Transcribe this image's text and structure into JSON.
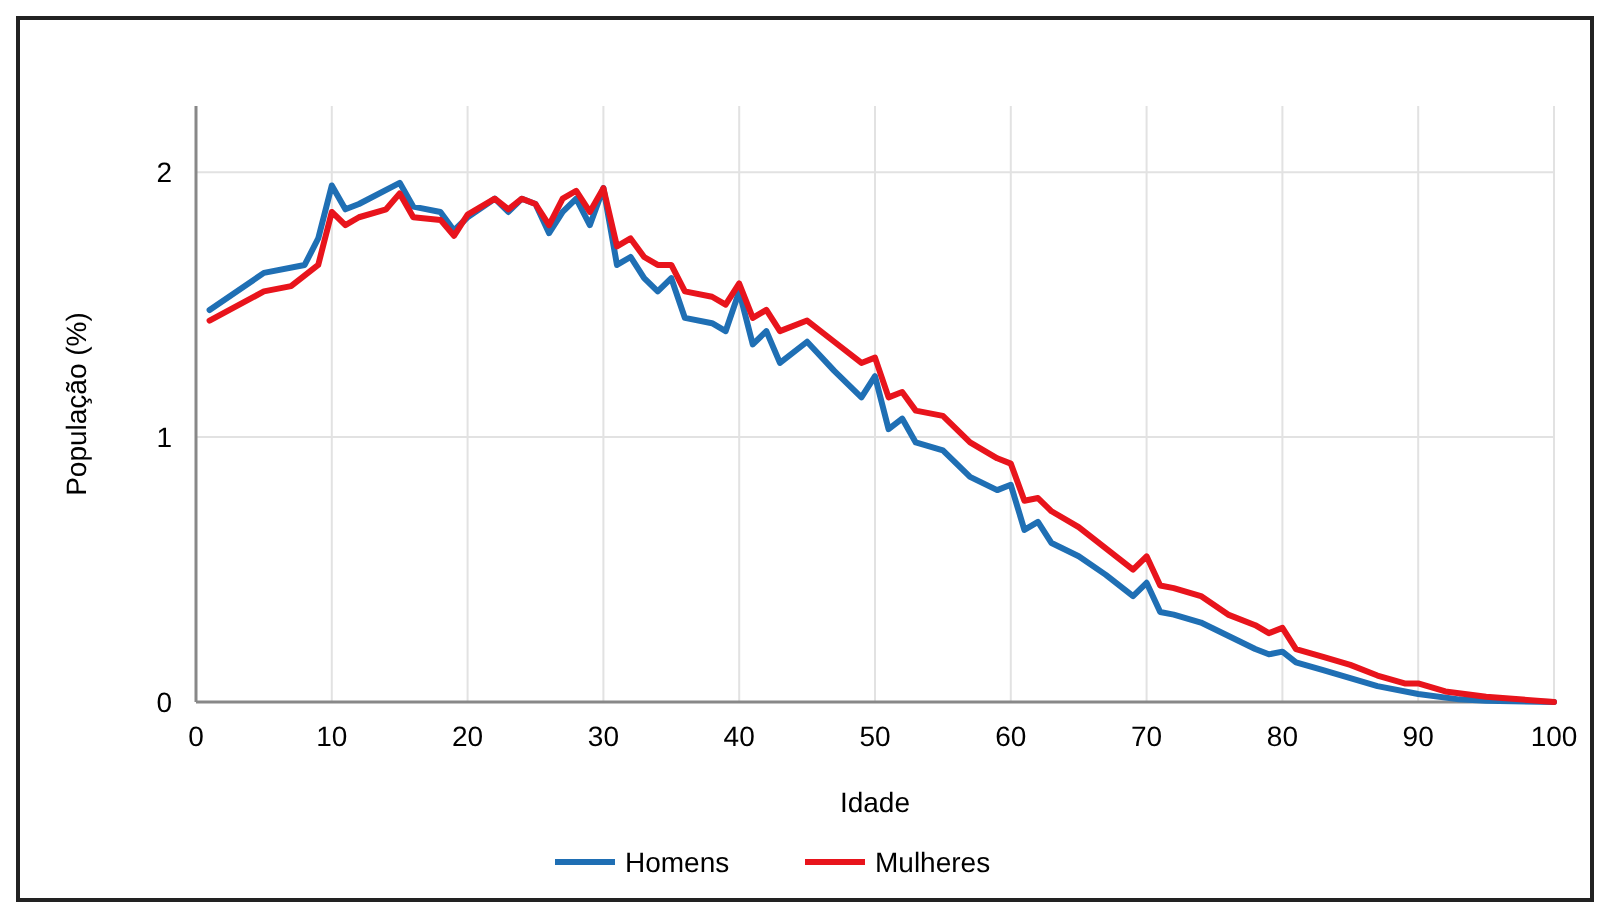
{
  "chart_data": {
    "type": "line",
    "xlabel": "Idade",
    "ylabel": "População (%)",
    "xlim": [
      0,
      100
    ],
    "ylim": [
      0,
      2.25
    ],
    "xticks": [
      0,
      10,
      20,
      30,
      40,
      50,
      60,
      70,
      80,
      90,
      100
    ],
    "yticks": [
      0,
      1,
      2
    ],
    "grid": true,
    "legend": "bottom",
    "line_style": "solid",
    "marker": "none",
    "series": [
      {
        "name": "Homens",
        "color": "#1f6fb4",
        "x": [
          1,
          5,
          8,
          9,
          10,
          11,
          12,
          15,
          16,
          18,
          19,
          20,
          22,
          23,
          24,
          25,
          26,
          27,
          28,
          29,
          30,
          31,
          32,
          33,
          34,
          35,
          36,
          38,
          39,
          40,
          41,
          42,
          43,
          45,
          47,
          49,
          50,
          51,
          52,
          53,
          55,
          57,
          59,
          60,
          61,
          62,
          63,
          65,
          67,
          69,
          70,
          71,
          72,
          74,
          76,
          78,
          79,
          80,
          81,
          83,
          85,
          87,
          90,
          93,
          95,
          100
        ],
        "values": [
          1.48,
          1.62,
          1.65,
          1.75,
          1.95,
          1.86,
          1.88,
          1.96,
          1.87,
          1.85,
          1.78,
          1.83,
          1.9,
          1.85,
          1.9,
          1.88,
          1.77,
          1.85,
          1.9,
          1.8,
          1.94,
          1.65,
          1.68,
          1.6,
          1.55,
          1.6,
          1.45,
          1.43,
          1.4,
          1.55,
          1.35,
          1.4,
          1.28,
          1.36,
          1.25,
          1.15,
          1.23,
          1.03,
          1.07,
          0.98,
          0.95,
          0.85,
          0.8,
          0.82,
          0.65,
          0.68,
          0.6,
          0.55,
          0.48,
          0.4,
          0.45,
          0.34,
          0.33,
          0.3,
          0.25,
          0.2,
          0.18,
          0.19,
          0.15,
          0.12,
          0.09,
          0.06,
          0.03,
          0.01,
          0.005,
          0
        ]
      },
      {
        "name": "Mulheres",
        "color": "#e8141c",
        "x": [
          1,
          5,
          7,
          9,
          10,
          11,
          12,
          14,
          15,
          16,
          18,
          19,
          20,
          22,
          23,
          24,
          25,
          26,
          27,
          28,
          29,
          30,
          31,
          32,
          33,
          34,
          35,
          36,
          38,
          39,
          40,
          41,
          42,
          43,
          45,
          47,
          49,
          50,
          51,
          52,
          53,
          55,
          57,
          59,
          60,
          61,
          62,
          63,
          65,
          67,
          69,
          70,
          71,
          72,
          74,
          76,
          78,
          79,
          80,
          81,
          83,
          85,
          87,
          89,
          90,
          92,
          95,
          100
        ],
        "values": [
          1.44,
          1.55,
          1.57,
          1.65,
          1.85,
          1.8,
          1.83,
          1.86,
          1.92,
          1.83,
          1.82,
          1.76,
          1.84,
          1.9,
          1.86,
          1.9,
          1.88,
          1.8,
          1.9,
          1.93,
          1.85,
          1.94,
          1.72,
          1.75,
          1.68,
          1.65,
          1.65,
          1.55,
          1.53,
          1.5,
          1.58,
          1.45,
          1.48,
          1.4,
          1.44,
          1.36,
          1.28,
          1.3,
          1.15,
          1.17,
          1.1,
          1.08,
          0.98,
          0.92,
          0.9,
          0.76,
          0.77,
          0.72,
          0.66,
          0.58,
          0.5,
          0.55,
          0.44,
          0.43,
          0.4,
          0.33,
          0.29,
          0.26,
          0.28,
          0.2,
          0.17,
          0.14,
          0.1,
          0.07,
          0.07,
          0.04,
          0.02,
          0
        ]
      }
    ]
  }
}
